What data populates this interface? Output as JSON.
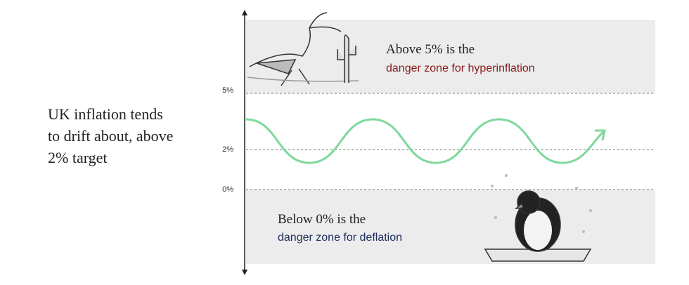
{
  "caption": {
    "lines": [
      "UK inflation tends",
      "to drift about, above",
      "2% target"
    ]
  },
  "axis": {
    "labels": [
      "5%",
      "2%",
      "0%"
    ]
  },
  "upper_zone": {
    "line1": "Above 5% is the",
    "line2": "danger zone for hyperinflation"
  },
  "lower_zone": {
    "line1": "Below 0% is the",
    "line2": "danger zone for deflation"
  }
}
